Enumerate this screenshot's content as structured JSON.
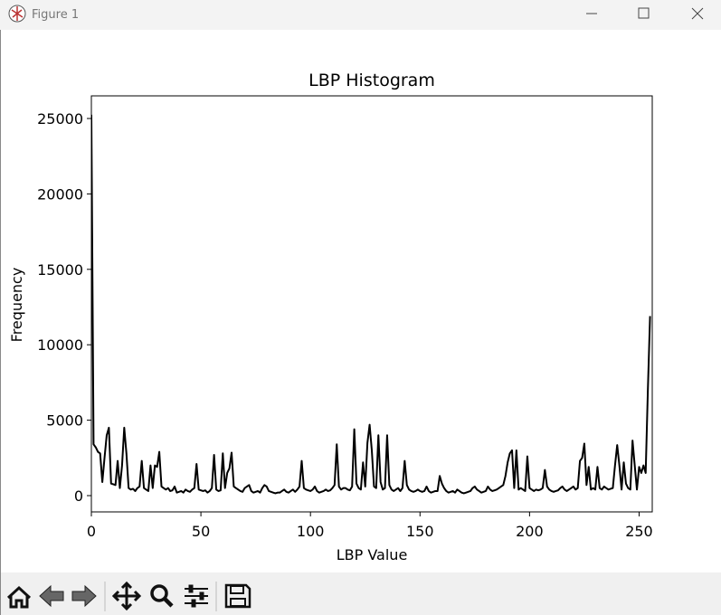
{
  "window": {
    "title": "Figure 1"
  },
  "chart_data": {
    "type": "line",
    "title": "LBP Histogram",
    "x_label": "LBP Value",
    "y_label": "Frequency",
    "color": "#000000",
    "x": [
      0,
      1,
      2,
      3,
      4,
      5,
      6,
      7,
      8,
      9,
      10,
      11,
      12,
      13,
      14,
      15,
      16,
      17,
      18,
      19,
      20,
      21,
      22,
      23,
      24,
      25,
      26,
      27,
      28,
      29,
      30,
      31,
      32,
      33,
      34,
      35,
      36,
      37,
      38,
      39,
      40,
      41,
      42,
      43,
      44,
      45,
      46,
      47,
      48,
      49,
      50,
      51,
      52,
      53,
      54,
      55,
      56,
      57,
      58,
      59,
      60,
      61,
      62,
      63,
      64,
      65,
      66,
      67,
      68,
      69,
      70,
      71,
      72,
      73,
      74,
      75,
      76,
      77,
      78,
      79,
      80,
      81,
      82,
      83,
      84,
      85,
      86,
      87,
      88,
      89,
      90,
      91,
      92,
      93,
      94,
      95,
      96,
      97,
      98,
      99,
      100,
      101,
      102,
      103,
      104,
      105,
      106,
      107,
      108,
      109,
      110,
      111,
      112,
      113,
      114,
      115,
      116,
      117,
      118,
      119,
      120,
      121,
      122,
      123,
      124,
      125,
      126,
      127,
      128,
      129,
      130,
      131,
      132,
      133,
      134,
      135,
      136,
      137,
      138,
      139,
      140,
      141,
      142,
      143,
      144,
      145,
      146,
      147,
      148,
      149,
      150,
      151,
      152,
      153,
      154,
      155,
      156,
      157,
      158,
      159,
      160,
      161,
      162,
      163,
      164,
      165,
      166,
      167,
      168,
      169,
      170,
      171,
      172,
      173,
      174,
      175,
      176,
      177,
      178,
      179,
      180,
      181,
      182,
      183,
      184,
      185,
      186,
      187,
      188,
      189,
      190,
      191,
      192,
      193,
      194,
      195,
      196,
      197,
      198,
      199,
      200,
      201,
      202,
      203,
      204,
      205,
      206,
      207,
      208,
      209,
      210,
      211,
      212,
      213,
      214,
      215,
      216,
      217,
      218,
      219,
      220,
      221,
      222,
      223,
      224,
      225,
      226,
      227,
      228,
      229,
      230,
      231,
      232,
      233,
      234,
      235,
      236,
      237,
      238,
      239,
      240,
      241,
      242,
      243,
      244,
      245,
      246,
      247,
      248,
      249,
      250,
      251,
      252,
      253,
      254,
      255
    ],
    "values": [
      25250,
      3400,
      3200,
      2900,
      2800,
      900,
      2500,
      4000,
      4500,
      800,
      750,
      700,
      2300,
      500,
      2000,
      4500,
      2800,
      500,
      400,
      450,
      300,
      500,
      600,
      2300,
      500,
      400,
      300,
      2000,
      500,
      2000,
      1900,
      2900,
      600,
      500,
      400,
      500,
      300,
      350,
      600,
      200,
      250,
      300,
      200,
      400,
      300,
      250,
      400,
      500,
      2100,
      400,
      350,
      300,
      350,
      200,
      300,
      500,
      2700,
      400,
      300,
      350,
      2800,
      500,
      1500,
      1800,
      2850,
      600,
      500,
      400,
      300,
      250,
      500,
      600,
      700,
      300,
      200,
      250,
      300,
      200,
      500,
      700,
      600,
      300,
      250,
      200,
      150,
      200,
      200,
      300,
      400,
      250,
      200,
      300,
      400,
      250,
      400,
      600,
      2300,
      500,
      400,
      350,
      300,
      400,
      600,
      300,
      200,
      250,
      300,
      400,
      300,
      350,
      500,
      700,
      3400,
      600,
      400,
      500,
      500,
      400,
      350,
      600,
      4400,
      800,
      500,
      400,
      2200,
      600,
      3500,
      4700,
      3000,
      600,
      500,
      4000,
      900,
      400,
      500,
      4000,
      700,
      400,
      300,
      400,
      500,
      300,
      500,
      2300,
      700,
      400,
      300,
      250,
      300,
      400,
      300,
      250,
      300,
      600,
      300,
      200,
      250,
      300,
      300,
      1300,
      800,
      500,
      300,
      200,
      250,
      300,
      200,
      400,
      300,
      200,
      150,
      200,
      250,
      300,
      500,
      600,
      400,
      300,
      200,
      250,
      300,
      600,
      400,
      300,
      350,
      400,
      500,
      600,
      700,
      1300,
      2200,
      2800,
      3000,
      500,
      3000,
      400,
      500,
      400,
      300,
      2600,
      500,
      400,
      300,
      400,
      350,
      400,
      500,
      1700,
      600,
      400,
      300,
      250,
      300,
      350,
      500,
      600,
      400,
      300,
      400,
      500,
      600,
      400,
      500,
      2300,
      2500,
      3450,
      700,
      1900,
      400,
      500,
      400,
      1900,
      500,
      400,
      600,
      500,
      400,
      450,
      500,
      2000,
      3350,
      2000,
      400,
      2200,
      800,
      500,
      400,
      3650,
      2000,
      400,
      1900,
      1500,
      2000,
      1500,
      7000,
      11900
    ],
    "xlim": [
      0,
      256
    ],
    "xticks": [
      0,
      50,
      100,
      150,
      200,
      250
    ],
    "ylim": [
      -1080,
      26500
    ],
    "yticks": [
      0,
      5000,
      10000,
      15000,
      20000,
      25000
    ]
  }
}
